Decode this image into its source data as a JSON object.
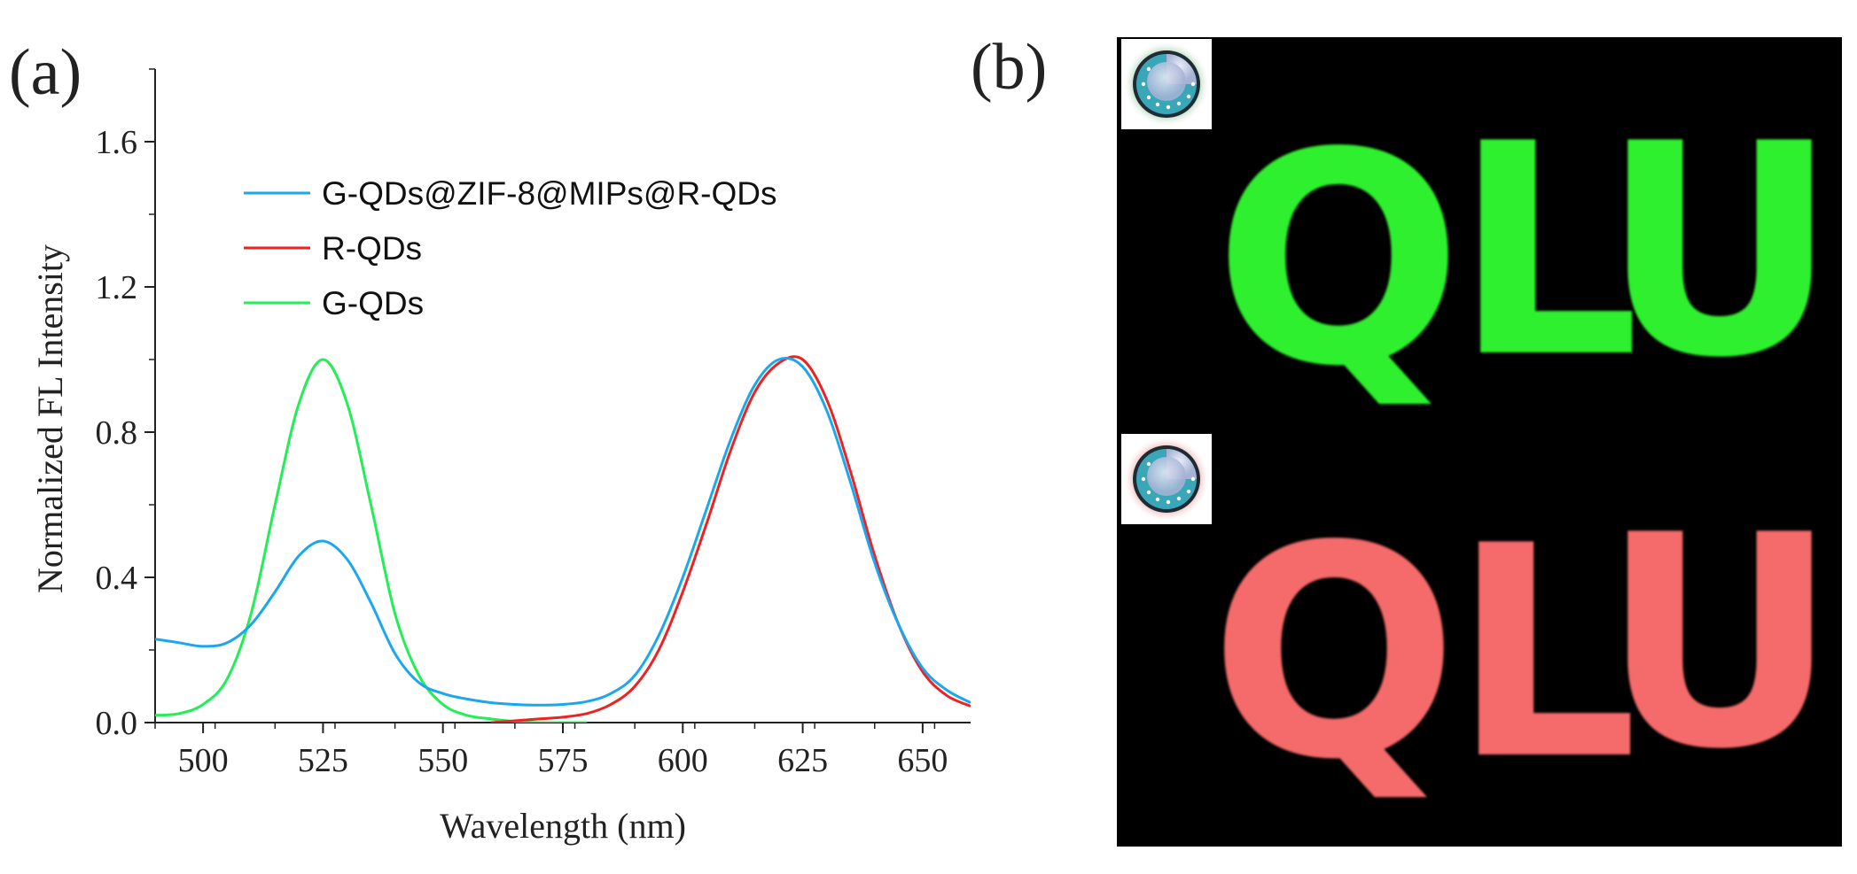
{
  "panel_a_label": "(a)",
  "panel_b_label": "(b)",
  "chart_data": {
    "type": "line",
    "title": "",
    "xlabel": "Wavelength (nm)",
    "ylabel": "Normalized FL Intensity",
    "xlim": [
      490,
      660
    ],
    "ylim": [
      0,
      1.8
    ],
    "xticks": [
      500,
      525,
      550,
      575,
      600,
      625,
      650
    ],
    "yticks": [
      0.0,
      0.4,
      0.8,
      1.2,
      1.6
    ],
    "ytick_labels": [
      "0.0",
      "0.4",
      "0.8",
      "1.2",
      "1.6"
    ],
    "legend_position": "upper-left",
    "series": [
      {
        "name": "G-QDs@ZIF-8@MIPs@R-QDs",
        "color": "#1aa7f0",
        "x": [
          490,
          495,
          500,
          505,
          510,
          515,
          520,
          525,
          530,
          535,
          540,
          545,
          550,
          555,
          560,
          565,
          570,
          575,
          580,
          585,
          590,
          595,
          600,
          605,
          610,
          615,
          620,
          625,
          630,
          635,
          640,
          645,
          650,
          655,
          660
        ],
        "y": [
          0.23,
          0.22,
          0.21,
          0.22,
          0.27,
          0.36,
          0.46,
          0.5,
          0.45,
          0.33,
          0.19,
          0.11,
          0.08,
          0.065,
          0.055,
          0.05,
          0.048,
          0.05,
          0.058,
          0.08,
          0.13,
          0.24,
          0.4,
          0.59,
          0.78,
          0.93,
          1.0,
          0.98,
          0.86,
          0.66,
          0.44,
          0.27,
          0.15,
          0.09,
          0.055
        ]
      },
      {
        "name": "R-QDs",
        "color": "#ee2222",
        "x": [
          560,
          565,
          570,
          575,
          580,
          585,
          590,
          595,
          600,
          605,
          610,
          615,
          620,
          625,
          630,
          635,
          640,
          645,
          650,
          655,
          660
        ],
        "y": [
          0.0,
          0.005,
          0.01,
          0.015,
          0.025,
          0.05,
          0.1,
          0.2,
          0.36,
          0.55,
          0.75,
          0.91,
          0.99,
          1.0,
          0.89,
          0.69,
          0.46,
          0.27,
          0.14,
          0.075,
          0.045
        ]
      },
      {
        "name": "G-QDs",
        "color": "#22ee55",
        "x": [
          490,
          495,
          500,
          505,
          510,
          515,
          520,
          525,
          530,
          535,
          540,
          545,
          550,
          555,
          560,
          565,
          570,
          575,
          580
        ],
        "y": [
          0.02,
          0.025,
          0.05,
          0.12,
          0.3,
          0.6,
          0.88,
          1.0,
          0.88,
          0.6,
          0.3,
          0.13,
          0.05,
          0.02,
          0.01,
          0.003,
          0.0,
          0.0,
          0.0
        ]
      }
    ]
  },
  "photo": {
    "background": "#000000",
    "top_row": {
      "letters": [
        "Q",
        "L",
        "U"
      ],
      "color": "#2ff02f"
    },
    "bottom_row": {
      "letters": [
        "Q",
        "L",
        "U"
      ],
      "color": "#f56a6a"
    },
    "top_badge_glow": "#3ba84a",
    "bottom_badge_glow": "#e24a4a"
  }
}
